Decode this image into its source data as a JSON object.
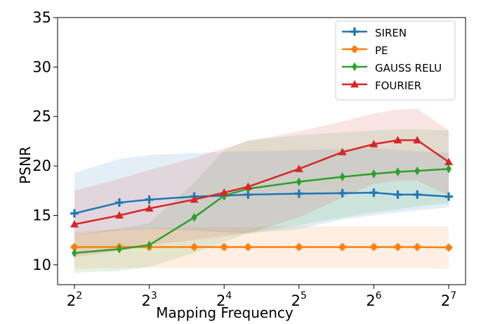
{
  "chart_data": {
    "type": "line",
    "title": "",
    "xlabel": "Mapping Frequency",
    "ylabel": "PSNR",
    "xscale": "log2",
    "xlim": [
      2,
      7
    ],
    "ylim": [
      8,
      35
    ],
    "yticks": [
      10,
      15,
      20,
      25,
      30,
      35
    ],
    "xticks": [
      {
        "base": "2",
        "exp": "2",
        "value": 2
      },
      {
        "base": "2",
        "exp": "3",
        "value": 3
      },
      {
        "base": "2",
        "exp": "4",
        "value": 4
      },
      {
        "base": "2",
        "exp": "5",
        "value": 5
      },
      {
        "base": "2",
        "exp": "6",
        "value": 6
      },
      {
        "base": "2",
        "exp": "7",
        "value": 7
      }
    ],
    "grid": false,
    "legend_position": "top-right",
    "series": [
      {
        "name": "SIREN",
        "color": "#1f77b4",
        "marker": "plus",
        "x": [
          2,
          2.6,
          3,
          3.6,
          4,
          4.32,
          5,
          5.58,
          6,
          6.32,
          6.58,
          7
        ],
        "values": [
          15.2,
          16.3,
          16.6,
          16.9,
          17.0,
          17.1,
          17.2,
          17.25,
          17.3,
          17.1,
          17.1,
          16.9
        ],
        "upper": [
          19.3,
          20.7,
          21.1,
          21.3,
          21.4,
          21.5,
          21.6,
          21.7,
          21.8,
          21.6,
          21.5,
          21.3
        ],
        "lower": [
          13.0,
          13.5,
          13.6,
          13.5,
          13.3,
          13.2,
          13.6,
          14.6,
          15.0,
          15.3,
          15.5,
          15.8
        ]
      },
      {
        "name": "PE",
        "color": "#ff7f0e",
        "marker": "diamond",
        "x": [
          2,
          2.6,
          3,
          3.6,
          4,
          4.32,
          5,
          5.58,
          6,
          6.32,
          6.58,
          7
        ],
        "values": [
          11.8,
          11.8,
          11.8,
          11.8,
          11.8,
          11.8,
          11.8,
          11.8,
          11.8,
          11.8,
          11.8,
          11.75
        ],
        "upper": [
          13.3,
          13.6,
          13.7,
          13.8,
          13.8,
          13.8,
          13.9,
          13.9,
          13.9,
          13.9,
          13.9,
          13.9
        ],
        "lower": [
          9.6,
          9.7,
          9.7,
          9.7,
          9.7,
          9.7,
          9.7,
          9.7,
          9.7,
          9.7,
          9.7,
          9.6
        ]
      },
      {
        "name": "GAUSS RELU",
        "color": "#2ca02c",
        "marker": "thin-diamond",
        "x": [
          2,
          2.6,
          3,
          3.6,
          4,
          4.32,
          5,
          5.58,
          6,
          6.32,
          6.58,
          7
        ],
        "values": [
          11.2,
          11.6,
          12.0,
          14.8,
          17.0,
          17.7,
          18.4,
          18.9,
          19.2,
          19.4,
          19.5,
          19.7
        ],
        "upper": [
          13.0,
          13.7,
          14.2,
          18.3,
          21.6,
          22.6,
          23.1,
          23.4,
          23.6,
          23.7,
          23.7,
          23.6
        ],
        "lower": [
          9.2,
          9.4,
          9.8,
          11.2,
          12.3,
          13.2,
          14.0,
          14.8,
          15.3,
          15.6,
          15.9,
          16.2
        ]
      },
      {
        "name": "FOURIER",
        "color": "#d62728",
        "marker": "triangle",
        "x": [
          2,
          2.6,
          3,
          3.6,
          4,
          4.32,
          5,
          5.58,
          6,
          6.32,
          6.58,
          7
        ],
        "values": [
          14.1,
          15.0,
          15.7,
          16.6,
          17.3,
          17.9,
          19.7,
          21.4,
          22.2,
          22.6,
          22.6,
          20.4
        ],
        "upper": [
          17.5,
          18.7,
          19.6,
          20.8,
          21.8,
          22.5,
          23.5,
          24.5,
          25.3,
          25.7,
          25.8,
          23.6
        ],
        "lower": [
          10.8,
          11.4,
          12.0,
          12.5,
          12.9,
          13.2,
          14.8,
          16.8,
          18.2,
          18.5,
          18.5,
          17.0
        ]
      }
    ]
  }
}
